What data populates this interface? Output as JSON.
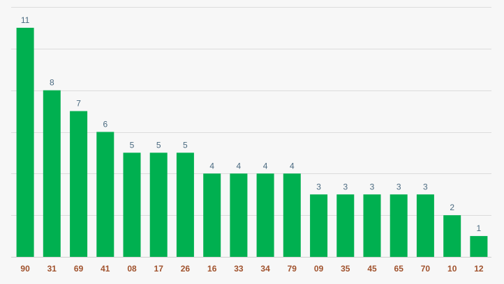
{
  "chart_data": {
    "type": "bar",
    "title": "",
    "xlabel": "",
    "ylabel": "",
    "categories": [
      "90",
      "31",
      "69",
      "41",
      "08",
      "17",
      "26",
      "16",
      "33",
      "34",
      "79",
      "09",
      "35",
      "45",
      "65",
      "70",
      "10",
      "12"
    ],
    "values": [
      11,
      8,
      7,
      6,
      5,
      5,
      5,
      4,
      4,
      4,
      4,
      3,
      3,
      3,
      3,
      3,
      2,
      1
    ],
    "ylim": [
      0,
      12
    ],
    "grid": true,
    "legend": "none",
    "colors": {
      "bar": "#00b050",
      "value_label": "#4a6a80",
      "category_label": "#a0522d",
      "grid": "#dcdcdc"
    }
  }
}
